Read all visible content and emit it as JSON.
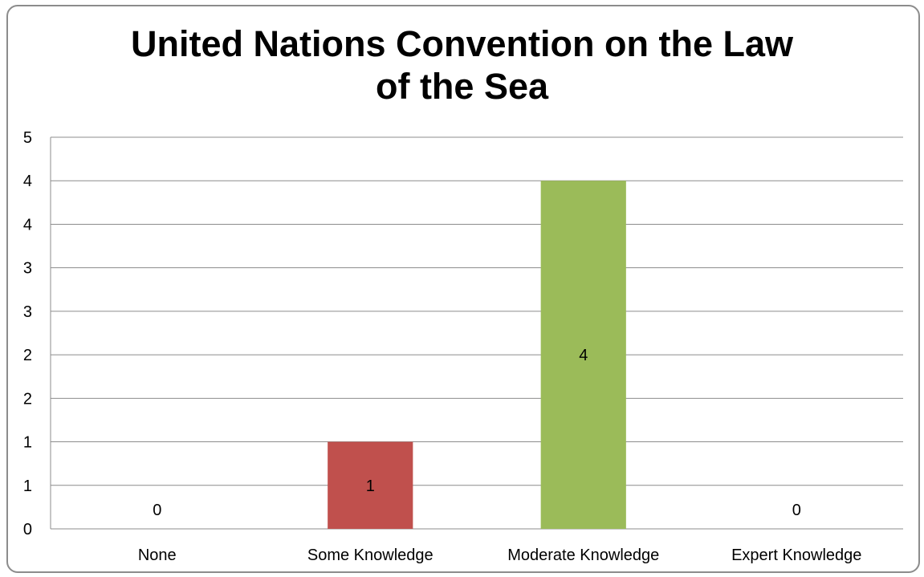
{
  "chart_data": {
    "type": "bar",
    "title_lines": [
      "United Nations Convention on the Law",
      "of the Sea"
    ],
    "categories": [
      "None",
      "Some Knowledge",
      "Moderate Knowledge",
      "Expert Knowledge"
    ],
    "values": [
      0,
      1,
      4,
      0
    ],
    "data_labels": [
      "0",
      "1",
      "4",
      "0"
    ],
    "bar_colors": [
      "#4f81bd",
      "#c0504d",
      "#9bbb59",
      "#8064a2"
    ],
    "ylim": [
      0,
      4.5
    ],
    "y_tick_labels": [
      "0",
      "1",
      "1",
      "2",
      "2",
      "3",
      "3",
      "4",
      "4",
      "5"
    ],
    "xlabel": "",
    "ylabel": "",
    "grid": true,
    "legend": "none"
  }
}
